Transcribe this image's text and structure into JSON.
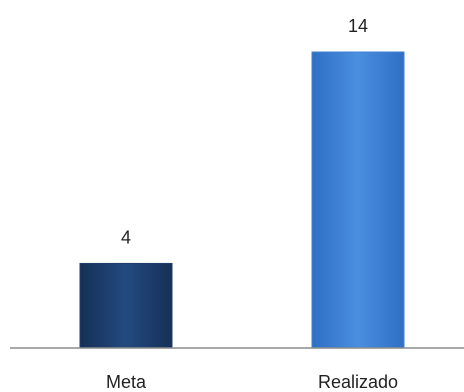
{
  "chart_data": {
    "type": "bar",
    "title": "",
    "xlabel": "",
    "ylabel": "",
    "categories": [
      "Meta",
      "Realizado"
    ],
    "values": [
      4,
      14
    ],
    "data_labels": [
      "4",
      "14"
    ],
    "ylim": [
      0,
      14
    ],
    "grid": false,
    "legend": "none",
    "colors": [
      "#1f3d6e",
      "#3f80d4"
    ]
  }
}
